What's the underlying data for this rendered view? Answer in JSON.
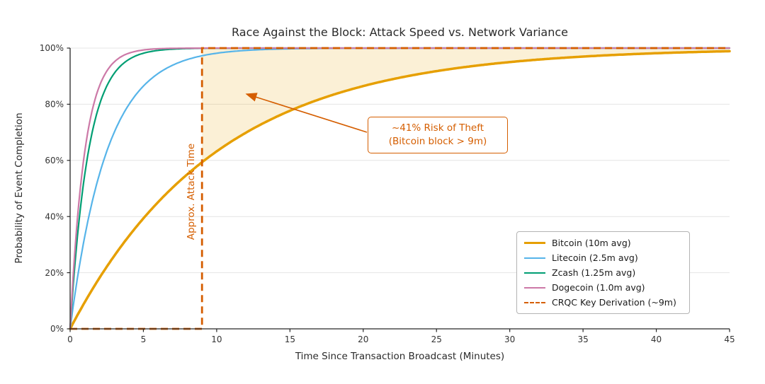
{
  "chart_data": {
    "type": "line",
    "title": "Race Against the Block: Attack Speed vs. Network Variance",
    "xlabel": "Time Since Transaction Broadcast (Minutes)",
    "ylabel": "Probability of Event Completion",
    "xlim": [
      0,
      45
    ],
    "ylim": [
      0,
      100
    ],
    "x_ticks": [
      0,
      5,
      10,
      15,
      20,
      25,
      30,
      35,
      40,
      45
    ],
    "y_ticks": [
      {
        "value": 0,
        "label": "0%"
      },
      {
        "value": 20,
        "label": "20%"
      },
      {
        "value": 40,
        "label": "40%"
      },
      {
        "value": 60,
        "label": "60%"
      },
      {
        "value": 80,
        "label": "80%"
      },
      {
        "value": 100,
        "label": "100%"
      }
    ],
    "grid": "horizontal",
    "series": [
      {
        "name": "Bitcoin (10m avg)",
        "color": "#E69F00",
        "mean_minutes": 10,
        "curve": "exponential_cdf",
        "linewidth": 3.5
      },
      {
        "name": "Litecoin (2.5m avg)",
        "color": "#56B4E9",
        "mean_minutes": 2.5,
        "curve": "exponential_cdf",
        "linewidth": 2.2
      },
      {
        "name": "Zcash (1.25m avg)",
        "color": "#009E73",
        "mean_minutes": 1.25,
        "curve": "exponential_cdf",
        "linewidth": 2.2
      },
      {
        "name": "Dogecoin (1.0m avg)",
        "color": "#CC79A7",
        "mean_minutes": 1.0,
        "curve": "exponential_cdf",
        "linewidth": 2.2
      }
    ],
    "step_series": {
      "name": "CRQC Key Derivation (~9m)",
      "color": "#D55E00",
      "style": "dashed",
      "linewidth": 2.8,
      "threshold_minutes": 9,
      "before_pct": 0,
      "after_pct": 100
    },
    "shaded_region": {
      "from_x": 9,
      "to_x": 45,
      "upper_pct": 100,
      "lower": "Bitcoin (10m avg) curve",
      "fill": "#E69F00",
      "opacity": 0.16
    },
    "key_points": {
      "bitcoin_completion_at_9m_pct": 59.3,
      "risk_of_theft_pct": 41
    },
    "annotations": {
      "risk": {
        "lines": [
          "~41% Risk of Theft",
          "(Bitcoin block > 9m)"
        ],
        "color": "#D55E00"
      },
      "attack_time": {
        "text": "Approx. Attack Time",
        "color": "#D55E00"
      }
    },
    "legend_position": "inside-right"
  }
}
